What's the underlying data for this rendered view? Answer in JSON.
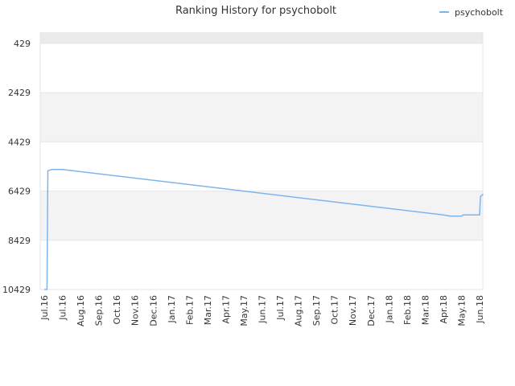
{
  "chart_data": {
    "type": "line",
    "title": "Ranking History for psychobolt",
    "xlabel": "",
    "ylabel": "",
    "y_reversed": true,
    "ylim": [
      10429,
      0
    ],
    "y_ticks": [
      429,
      2429,
      4429,
      6429,
      8429,
      10429
    ],
    "y_tick_labels": [
      "429",
      "2429",
      "4429",
      "6429",
      "8429",
      "10429"
    ],
    "x_tick_labels": [
      "Jul.16",
      "Jul.16",
      "Aug.16",
      "Sep.16",
      "Oct.16",
      "Nov.16",
      "Dec.16",
      "Jan.17",
      "Feb.17",
      "Mar.17",
      "Apr.17",
      "May.17",
      "Jun.17",
      "Jul.17",
      "Aug.17",
      "Sep.17",
      "Oct.17",
      "Nov.17",
      "Dec.17",
      "Jan.18",
      "Feb.18",
      "Mar.18",
      "Apr.18",
      "May.18",
      "Jun.18"
    ],
    "grid": true,
    "legend_position": "top-right",
    "colors": {
      "line": "#7cb5ec",
      "band": "#f3f3f3",
      "band_top": "#ebebeb",
      "grid": "#e6e6e6"
    },
    "series": [
      {
        "name": "psychobolt",
        "points": [
          {
            "x": 0.0,
            "y": 10429
          },
          {
            "x": 0.15,
            "y": 10429
          },
          {
            "x": 0.2,
            "y": 5600
          },
          {
            "x": 0.45,
            "y": 5550
          },
          {
            "x": 1.0,
            "y": 5550
          },
          {
            "x": 22.0,
            "y": 7400
          },
          {
            "x": 22.4,
            "y": 7450
          },
          {
            "x": 23.0,
            "y": 7450
          },
          {
            "x": 23.1,
            "y": 7400
          },
          {
            "x": 24.0,
            "y": 7400
          },
          {
            "x": 24.05,
            "y": 6650
          },
          {
            "x": 24.2,
            "y": 6550
          }
        ]
      }
    ]
  }
}
